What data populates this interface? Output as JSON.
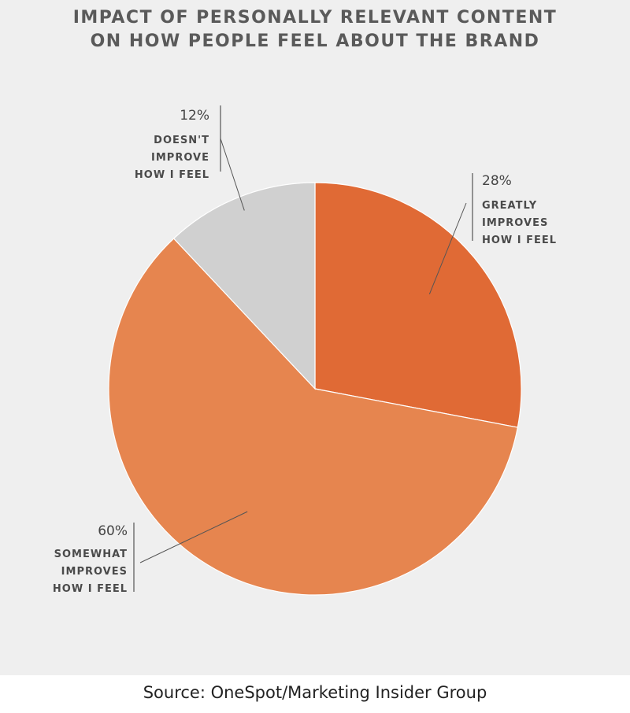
{
  "title_lines": [
    "IMPACT OF PERSONALLY RELEVANT CONTENT",
    "ON HOW PEOPLE FEEL ABOUT THE BRAND"
  ],
  "source": "Source: OneSpot/Marketing Insider Group",
  "chart_data": {
    "type": "pie",
    "title": "IMPACT OF PERSONALLY RELEVANT CONTENT ON HOW PEOPLE FEEL ABOUT THE BRAND",
    "slices": [
      {
        "label_lines": [
          "GREATLY",
          "IMPROVES",
          "HOW I FEEL"
        ],
        "value": 28,
        "value_label": "28%",
        "color": "#e06a35"
      },
      {
        "label_lines": [
          "SOMEWHAT",
          "IMPROVES",
          "HOW I FEEL"
        ],
        "value": 60,
        "value_label": "60%",
        "color": "#e6854f"
      },
      {
        "label_lines": [
          "DOESN'T",
          "IMPROVE",
          "HOW I FEEL"
        ],
        "value": 12,
        "value_label": "12%",
        "color": "#d0d0d0"
      }
    ],
    "start": "12 o'clock",
    "direction": "clockwise",
    "legend": "none"
  }
}
